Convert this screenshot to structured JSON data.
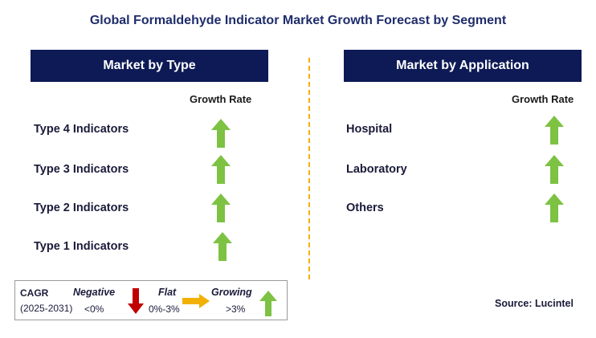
{
  "title": "Global Formaldehyde Indicator Market Growth Forecast by Segment",
  "left_panel": {
    "header": "Market by Type",
    "column_header": "Growth Rate",
    "rows": [
      {
        "label": "Type 4 Indicators",
        "growth": "growing"
      },
      {
        "label": "Type 3 Indicators",
        "growth": "growing"
      },
      {
        "label": "Type 2 Indicators",
        "growth": "growing"
      },
      {
        "label": "Type 1 Indicators",
        "growth": "growing"
      }
    ]
  },
  "right_panel": {
    "header": "Market by Application",
    "column_header": "Growth Rate",
    "rows": [
      {
        "label": "Hospital",
        "growth": "growing"
      },
      {
        "label": "Laboratory",
        "growth": "growing"
      },
      {
        "label": "Others",
        "growth": "growing"
      }
    ]
  },
  "legend": {
    "cagr_label": "CAGR",
    "period": "(2025-2031)",
    "negative_label": "Negative",
    "negative_range": "<0%",
    "flat_label": "Flat",
    "flat_range": "0%-3%",
    "growing_label": "Growing",
    "growing_range": ">3%"
  },
  "source": "Source: Lucintel",
  "colors": {
    "header_bg": "#0d1a55",
    "growing": "#7dc242",
    "negative": "#c00000",
    "flat": "#f2b100",
    "divider": "#f2b100"
  },
  "icons": {
    "growing": "up-arrow-icon",
    "negative": "down-arrow-icon",
    "flat": "right-arrow-icon"
  }
}
